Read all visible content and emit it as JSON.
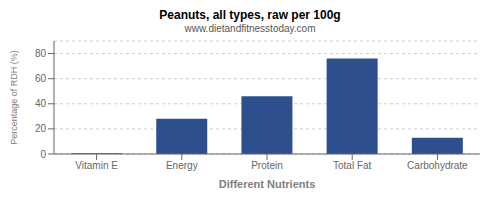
{
  "chart_data": {
    "type": "bar",
    "title": "Peanuts, all types, raw per 100g",
    "subtitle": "www.dietandfitnesstoday.com",
    "xlabel": "Different Nutrients",
    "ylabel": "Percentage of RDH (%)",
    "categories": [
      "Vitamin E",
      "Energy",
      "Protein",
      "Total Fat",
      "Carbohydrate"
    ],
    "values": [
      0.5,
      28,
      46,
      76,
      13
    ],
    "color": "#2d4f8e",
    "ylim": [
      0,
      90
    ],
    "yticks": [
      0,
      20,
      40,
      60,
      80
    ],
    "grid": true
  }
}
